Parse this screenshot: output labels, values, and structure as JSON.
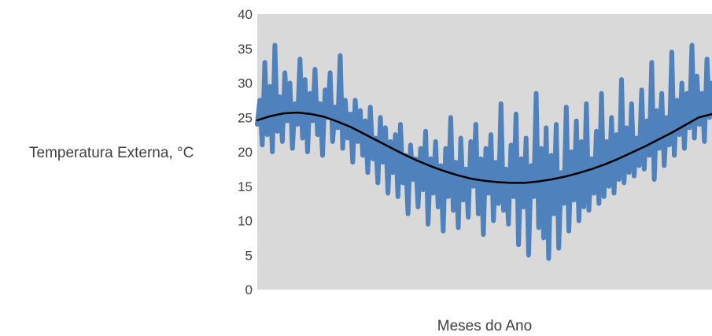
{
  "chart_data": {
    "type": "line",
    "title": "",
    "xlabel": "Meses do Ano",
    "ylabel": "Temperatura Externa, °C",
    "ylim": [
      0,
      40
    ],
    "yticks": [
      "0",
      "5",
      "10",
      "15",
      "20",
      "25",
      "30",
      "35",
      "40"
    ],
    "grid": false,
    "legend": "none",
    "colors": {
      "plot_area": "#d9d9d9",
      "series": "#4f81bd",
      "trend": "#000000",
      "text": "#404040"
    },
    "series": [
      {
        "values": [
          24.0,
          27.5,
          21.0,
          33.0,
          22.5,
          29.5,
          20.0,
          35.5,
          23.0,
          28.0,
          21.5,
          31.5,
          24.5,
          30.0,
          20.5,
          27.0,
          24.0,
          33.5,
          22.0,
          30.5,
          20.0,
          28.5,
          24.5,
          32.0,
          22.5,
          27.0,
          19.5,
          29.0,
          25.0,
          31.5,
          21.5,
          26.5,
          23.5,
          34.0,
          20.5,
          27.5,
          22.0,
          25.5,
          18.5,
          27.5,
          21.5,
          26.0,
          19.5,
          24.5,
          17.0,
          26.5,
          19.0,
          22.0,
          15.5,
          25.0,
          18.5,
          23.5,
          14.0,
          21.5,
          17.0,
          22.5,
          13.5,
          24.0,
          15.5,
          19.5,
          11.0,
          21.0,
          16.0,
          19.0,
          12.0,
          20.5,
          14.5,
          23.0,
          9.5,
          19.0,
          14.0,
          21.5,
          12.0,
          18.0,
          8.5,
          20.5,
          13.5,
          25.0,
          11.5,
          18.5,
          9.0,
          22.0,
          13.0,
          17.5,
          10.5,
          21.5,
          15.0,
          24.0,
          11.0,
          19.0,
          8.0,
          20.5,
          14.0,
          22.5,
          10.0,
          18.5,
          12.5,
          27.0,
          11.5,
          17.5,
          9.5,
          21.0,
          13.5,
          25.5,
          6.5,
          19.0,
          12.0,
          22.0,
          5.0,
          18.0,
          13.5,
          28.5,
          9.0,
          20.5,
          7.5,
          23.5,
          4.5,
          19.5,
          11.0,
          24.0,
          6.0,
          17.0,
          12.5,
          26.5,
          8.5,
          20.0,
          13.0,
          24.5,
          10.0,
          21.5,
          12.0,
          27.0,
          11.5,
          19.0,
          14.0,
          23.0,
          12.5,
          28.5,
          13.5,
          21.5,
          15.0,
          25.0,
          14.0,
          22.5,
          16.0,
          30.5,
          15.5,
          23.5,
          17.0,
          27.0,
          16.5,
          22.0,
          18.0,
          29.0,
          17.5,
          24.5,
          19.5,
          33.0,
          16.0,
          26.0,
          20.5,
          28.5,
          18.0,
          25.0,
          21.0,
          34.5,
          19.5,
          27.5,
          22.5,
          30.0,
          20.5,
          28.5,
          23.5,
          35.5,
          22.0,
          31.0,
          24.0,
          28.5,
          21.5,
          33.5,
          25.0,
          30.0
        ]
      },
      {
        "values": [
          24.6,
          25.2,
          25.6,
          25.7,
          25.5,
          25.1,
          24.4,
          23.6,
          22.6,
          21.6,
          20.6,
          19.6,
          18.7,
          17.9,
          17.2,
          16.6,
          16.1,
          15.8,
          15.6,
          15.5,
          15.5,
          15.7,
          16.0,
          16.4,
          16.9,
          17.5,
          18.2,
          19.0,
          19.9,
          20.8,
          21.8,
          22.8,
          23.9,
          25.0,
          25.5
        ]
      }
    ]
  }
}
